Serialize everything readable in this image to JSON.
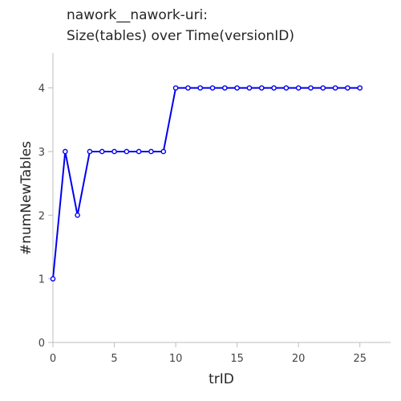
{
  "chart_data": {
    "type": "line",
    "title": "nawork__nawork-uri:",
    "subtitle": "Size(tables) over Time(versionID)",
    "xlabel": "trID",
    "ylabel": "#numNewTables",
    "xlim": [
      0,
      27.5
    ],
    "ylim": [
      0,
      4.55
    ],
    "xticks": [
      "0",
      "5",
      "10",
      "15",
      "20",
      "25"
    ],
    "yticks": [
      "0",
      "1",
      "2",
      "3",
      "4"
    ],
    "grid": false,
    "colors": {
      "line": "#0000ee",
      "marker_fill": "#ffffff"
    },
    "series": [
      {
        "x": [
          0,
          1,
          2,
          3,
          4,
          5,
          6,
          7,
          8,
          9,
          10,
          11,
          12,
          13,
          14,
          15,
          16,
          17,
          18,
          19,
          20,
          21,
          22,
          23,
          24,
          25
        ],
        "values": [
          1,
          3,
          2,
          3,
          3,
          3,
          3,
          3,
          3,
          3,
          4,
          4,
          4,
          4,
          4,
          4,
          4,
          4,
          4,
          4,
          4,
          4,
          4,
          4,
          4,
          4
        ]
      }
    ]
  }
}
